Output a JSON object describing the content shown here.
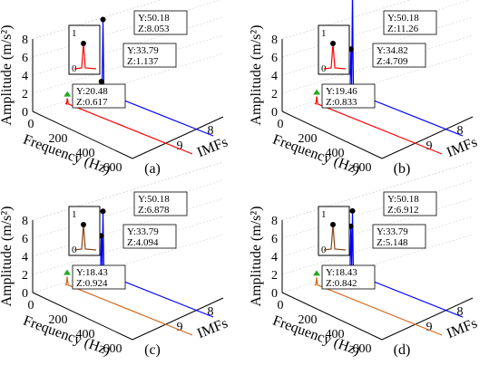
{
  "chart_data": [
    {
      "type": "line",
      "subplot_label": "(a)",
      "xlabel": "Frequency (Hz)",
      "ylabel": "Amplitude (m/s²)",
      "zlabel": "IMFs",
      "x_ticks": [
        "0",
        "200",
        "400",
        "600"
      ],
      "y_ticks": [
        "0",
        "2",
        "4",
        "6",
        "8"
      ],
      "imf_ticks": [
        "8",
        "9"
      ],
      "series": [
        {
          "imf": 8,
          "color": "#0000ff",
          "peaks": [
            {
              "x": 33.79,
              "z": 1.137
            },
            {
              "x": 50.18,
              "z": 8.053
            }
          ]
        },
        {
          "imf": 9,
          "color": "#ff0000",
          "peaks": [
            {
              "x": 20.48,
              "z": 0.617
            }
          ]
        }
      ],
      "annotations": [
        {
          "y": "Y:50.18",
          "z": "Z:8.053"
        },
        {
          "y": "Y:33.79",
          "z": "Z:1.137"
        },
        {
          "y": "Y:20.48",
          "z": "Z:0.617"
        }
      ],
      "inset": {
        "top": "1",
        "bottom": "0",
        "color": "#ff0000"
      }
    },
    {
      "type": "line",
      "subplot_label": "(b)",
      "xlabel": "Frequency (Hz)",
      "ylabel": "Amplitude (m/s²)",
      "zlabel": "IMFs",
      "x_ticks": [
        "0",
        "200",
        "400",
        "600"
      ],
      "y_ticks": [
        "0",
        "2",
        "4",
        "6",
        "8"
      ],
      "imf_ticks": [
        "8",
        "9"
      ],
      "series": [
        {
          "imf": 8,
          "color": "#0000ff",
          "peaks": [
            {
              "x": 34.82,
              "z": 4.709
            },
            {
              "x": 50.18,
              "z": 11.26
            }
          ]
        },
        {
          "imf": 9,
          "color": "#ff0000",
          "peaks": [
            {
              "x": 19.46,
              "z": 0.833
            }
          ]
        }
      ],
      "annotations": [
        {
          "y": "Y:50.18",
          "z": "Z:11.26"
        },
        {
          "y": "Y:34.82",
          "z": "Z:4.709"
        },
        {
          "y": "Y:19.46",
          "z": "Z:0.833"
        }
      ],
      "inset": {
        "top": "1",
        "bottom": "0",
        "color": "#ff0000"
      }
    },
    {
      "type": "line",
      "subplot_label": "(c)",
      "xlabel": "Frequency (Hz)",
      "ylabel": "Amplitude (m/s²)",
      "zlabel": "IMFs",
      "x_ticks": [
        "0",
        "200",
        "400",
        "600"
      ],
      "y_ticks": [
        "0",
        "2",
        "4",
        "6",
        "8"
      ],
      "imf_ticks": [
        "8",
        "9"
      ],
      "series": [
        {
          "imf": 8,
          "color": "#0000ff",
          "peaks": [
            {
              "x": 33.79,
              "z": 4.094
            },
            {
              "x": 50.18,
              "z": 6.878
            }
          ]
        },
        {
          "imf": 9,
          "color": "#d2691e",
          "peaks": [
            {
              "x": 18.43,
              "z": 0.924
            }
          ]
        }
      ],
      "annotations": [
        {
          "y": "Y:50.18",
          "z": "Z:6.878"
        },
        {
          "y": "Y:33.79",
          "z": "Z:4.094"
        },
        {
          "y": "Y:18.43",
          "z": "Z:0.924"
        }
      ],
      "inset": {
        "top": "1",
        "bottom": "0",
        "color": "#8b4513"
      }
    },
    {
      "type": "line",
      "subplot_label": "(d)",
      "xlabel": "Frequency (Hz)",
      "ylabel": "Amplitude (m/s²)",
      "zlabel": "IMFs",
      "x_ticks": [
        "0",
        "200",
        "400",
        "600"
      ],
      "y_ticks": [
        "0",
        "2",
        "4",
        "6",
        "8"
      ],
      "imf_ticks": [
        "8",
        "9"
      ],
      "series": [
        {
          "imf": 8,
          "color": "#0000ff",
          "peaks": [
            {
              "x": 33.79,
              "z": 5.148
            },
            {
              "x": 50.18,
              "z": 6.912
            }
          ]
        },
        {
          "imf": 9,
          "color": "#d2691e",
          "peaks": [
            {
              "x": 18.43,
              "z": 0.842
            }
          ]
        }
      ],
      "annotations": [
        {
          "y": "Y:50.18",
          "z": "Z:6.912"
        },
        {
          "y": "Y:33.79",
          "z": "Z:5.148"
        },
        {
          "y": "Y:18.43",
          "z": "Z:0.842"
        }
      ],
      "inset": {
        "top": "1",
        "bottom": "0",
        "color": "#8b4513"
      }
    }
  ]
}
